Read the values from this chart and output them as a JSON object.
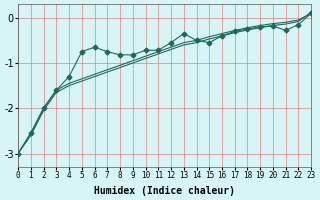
{
  "xlabel": "Humidex (Indice chaleur)",
  "background_color": "#d8f5f5",
  "grid_color": "#e08080",
  "line_color": "#1a6b5a",
  "xlim": [
    0,
    23
  ],
  "ylim": [
    -3.3,
    0.3
  ],
  "yticks": [
    0,
    -1,
    -2,
    -3
  ],
  "xticks": [
    0,
    1,
    2,
    3,
    4,
    5,
    6,
    7,
    8,
    9,
    10,
    11,
    12,
    13,
    14,
    15,
    16,
    17,
    18,
    19,
    20,
    21,
    22,
    23
  ],
  "line1_x": [
    0,
    1,
    2,
    3,
    4,
    5,
    6,
    7,
    8,
    9,
    10,
    11,
    12,
    13,
    14,
    15,
    16,
    17,
    18,
    19,
    20,
    21,
    22,
    23
  ],
  "line1_y": [
    -3.0,
    -2.55,
    -2.0,
    -1.6,
    -1.3,
    -0.75,
    -0.65,
    -0.75,
    -0.82,
    -0.82,
    -0.72,
    -0.72,
    -0.55,
    -0.35,
    -0.5,
    -0.55,
    -0.4,
    -0.3,
    -0.25,
    -0.2,
    -0.18,
    -0.28,
    -0.15,
    0.1
  ],
  "line2_x": [
    0,
    1,
    2,
    3,
    4,
    5,
    6,
    7,
    8,
    9,
    10,
    11,
    12,
    13,
    14,
    15,
    16,
    17,
    18,
    19,
    20,
    21,
    22,
    23
  ],
  "line2_y": [
    -3.0,
    -2.55,
    -2.0,
    -1.6,
    -1.45,
    -1.35,
    -1.25,
    -1.15,
    -1.05,
    -0.95,
    -0.85,
    -0.75,
    -0.65,
    -0.55,
    -0.5,
    -0.42,
    -0.35,
    -0.28,
    -0.22,
    -0.17,
    -0.13,
    -0.1,
    -0.05,
    0.1
  ],
  "line3_x": [
    0,
    1,
    2,
    3,
    4,
    5,
    6,
    7,
    8,
    9,
    10,
    11,
    12,
    13,
    14,
    15,
    16,
    17,
    18,
    19,
    20,
    21,
    22,
    23
  ],
  "line3_y": [
    -3.0,
    -2.6,
    -2.05,
    -1.65,
    -1.5,
    -1.4,
    -1.3,
    -1.2,
    -1.1,
    -1.0,
    -0.9,
    -0.8,
    -0.7,
    -0.6,
    -0.55,
    -0.47,
    -0.4,
    -0.33,
    -0.27,
    -0.22,
    -0.17,
    -0.14,
    -0.08,
    0.12
  ]
}
